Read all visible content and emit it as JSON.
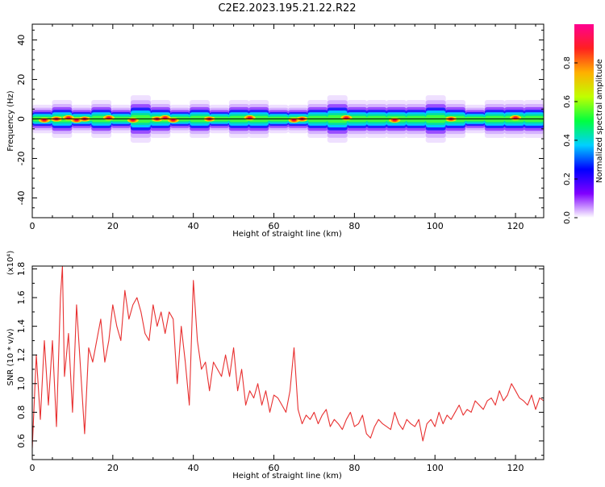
{
  "title": "C2E2.2023.195.21.22.R22",
  "chart_data": [
    {
      "type": "heatmap",
      "xlabel": "Height of straight line (km)",
      "ylabel": "Frequency (Hz)",
      "xlim": [
        0,
        127
      ],
      "ylim": [
        -50,
        48
      ],
      "xticks": [
        0,
        20,
        40,
        60,
        80,
        100,
        120
      ],
      "yticks": [
        40,
        20,
        0,
        -20,
        -40
      ],
      "ytick_labels": [
        "40",
        "20",
        "0",
        "-20",
        "-40"
      ],
      "ridge_frequency": 0,
      "ridge_halfwidth_hz": [
        3,
        4,
        3,
        4,
        3,
        5,
        4,
        3,
        4,
        3,
        4,
        4,
        3,
        3,
        4,
        5,
        4,
        4,
        4,
        4,
        5,
        4,
        3,
        4,
        4,
        4
      ],
      "hotspots_km": [
        3,
        6,
        9,
        11,
        13,
        19,
        25,
        31,
        33,
        35,
        44,
        54,
        65,
        67,
        78,
        90,
        104,
        120
      ],
      "colorbar": {
        "label": "Normalized spectral amplitude",
        "ticks": [
          0.0,
          0.2,
          0.4,
          0.6,
          0.8
        ],
        "tick_labels": [
          "0.0",
          "0.2",
          "0.4",
          "0.6",
          "0.8"
        ],
        "range": [
          0,
          1
        ],
        "colors": [
          "#ffffff",
          "#8000ff",
          "#0000ff",
          "#00d0ff",
          "#00ff40",
          "#c0ff00",
          "#ffb000",
          "#ff2020",
          "#ff0090"
        ]
      },
      "grid": false
    },
    {
      "type": "line",
      "xlabel": "Height of straight line (km)",
      "ylabel": "SNR (10 * v/v)",
      "scale_label": "(x10⁴)",
      "xlim": [
        0,
        127
      ],
      "ylim": [
        0.47,
        1.82
      ],
      "xticks": [
        0,
        20,
        40,
        60,
        80,
        100,
        120
      ],
      "yticks": [
        0.6,
        0.8,
        1.0,
        1.2,
        1.4,
        1.6,
        1.8
      ],
      "ytick_labels": [
        "0.6",
        "0.8",
        "1.0",
        "1.2",
        "1.4",
        "1.6",
        "1.8"
      ],
      "series_color": "#e83030",
      "x": [
        0,
        1,
        2,
        3,
        4,
        5,
        6,
        7,
        7.5,
        8,
        9,
        10,
        11,
        12,
        13,
        14,
        15,
        16,
        17,
        18,
        19,
        20,
        21,
        22,
        23,
        24,
        25,
        26,
        27,
        28,
        29,
        30,
        31,
        32,
        33,
        34,
        35,
        36,
        37,
        38,
        39,
        40,
        41,
        42,
        43,
        44,
        45,
        46,
        47,
        48,
        49,
        50,
        51,
        52,
        53,
        54,
        55,
        56,
        57,
        58,
        59,
        60,
        61,
        62,
        63,
        64,
        65,
        66,
        67,
        68,
        69,
        70,
        71,
        72,
        73,
        74,
        75,
        76,
        77,
        78,
        79,
        80,
        81,
        82,
        83,
        84,
        85,
        86,
        87,
        88,
        89,
        90,
        91,
        92,
        93,
        94,
        95,
        96,
        97,
        98,
        99,
        100,
        101,
        102,
        103,
        104,
        105,
        106,
        107,
        108,
        109,
        110,
        111,
        112,
        113,
        114,
        115,
        116,
        117,
        118,
        119,
        120,
        121,
        122,
        123,
        124,
        125,
        126,
        127
      ],
      "values": [
        0.55,
        1.2,
        0.75,
        1.3,
        0.85,
        1.3,
        0.7,
        1.6,
        1.82,
        1.05,
        1.35,
        0.8,
        1.55,
        1.1,
        0.65,
        1.25,
        1.15,
        1.3,
        1.45,
        1.15,
        1.3,
        1.55,
        1.4,
        1.3,
        1.65,
        1.45,
        1.55,
        1.6,
        1.5,
        1.35,
        1.3,
        1.55,
        1.4,
        1.5,
        1.35,
        1.5,
        1.45,
        1.0,
        1.4,
        1.15,
        0.85,
        1.72,
        1.3,
        1.1,
        1.15,
        0.95,
        1.15,
        1.1,
        1.05,
        1.2,
        1.05,
        1.25,
        0.95,
        1.1,
        0.85,
        0.95,
        0.9,
        1.0,
        0.85,
        0.95,
        0.8,
        0.92,
        0.9,
        0.85,
        0.8,
        0.95,
        1.25,
        0.82,
        0.72,
        0.78,
        0.75,
        0.8,
        0.72,
        0.78,
        0.82,
        0.7,
        0.75,
        0.72,
        0.68,
        0.75,
        0.8,
        0.7,
        0.72,
        0.78,
        0.65,
        0.62,
        0.7,
        0.75,
        0.72,
        0.7,
        0.68,
        0.8,
        0.72,
        0.68,
        0.75,
        0.72,
        0.7,
        0.75,
        0.6,
        0.72,
        0.75,
        0.7,
        0.8,
        0.72,
        0.78,
        0.75,
        0.8,
        0.85,
        0.78,
        0.82,
        0.8,
        0.88,
        0.85,
        0.82,
        0.88,
        0.9,
        0.85,
        0.95,
        0.88,
        0.92,
        1.0,
        0.95,
        0.9,
        0.88,
        0.85,
        0.92,
        0.82,
        0.9,
        0.88
      ],
      "grid": false
    }
  ]
}
